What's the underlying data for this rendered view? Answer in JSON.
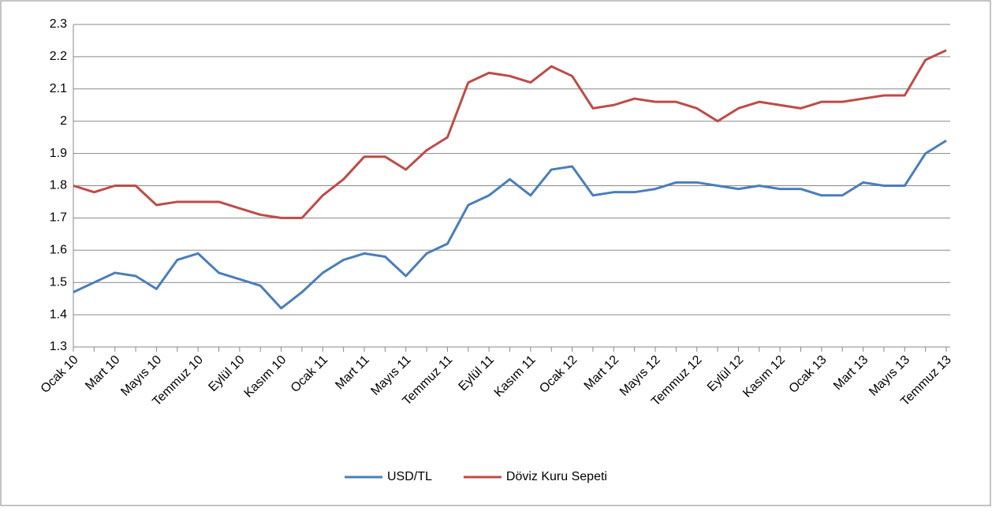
{
  "chart_data": {
    "type": "line",
    "categories": [
      "Ocak 10",
      null,
      "Mart 10",
      null,
      "Mayıs 10",
      null,
      "Temmuz 10",
      null,
      "Eylül 10",
      null,
      "Kasım 10",
      null,
      "Ocak 11",
      null,
      "Mart 11",
      null,
      "Mayıs 11",
      null,
      "Temmuz 11",
      null,
      "Eylül 11",
      null,
      "Kasım 11",
      null,
      "Ocak 12",
      null,
      "Mart 12",
      null,
      "Mayıs 12",
      null,
      "Temmuz 12",
      null,
      "Eylül 12",
      null,
      "Kasım 12",
      null,
      "Ocak 13",
      null,
      "Mart 13",
      null,
      "Mayıs 13",
      null,
      "Temmuz 13"
    ],
    "series": [
      {
        "name": "USD/TL",
        "color": "#4a7ebb",
        "values": [
          1.47,
          1.5,
          1.53,
          1.52,
          1.48,
          1.57,
          1.59,
          1.53,
          1.51,
          1.49,
          1.42,
          1.47,
          1.53,
          1.57,
          1.59,
          1.58,
          1.52,
          1.59,
          1.62,
          1.74,
          1.77,
          1.82,
          1.77,
          1.85,
          1.86,
          1.77,
          1.78,
          1.78,
          1.79,
          1.81,
          1.81,
          1.8,
          1.79,
          1.8,
          1.79,
          1.79,
          1.77,
          1.77,
          1.81,
          1.8,
          1.8,
          1.9,
          1.94
        ]
      },
      {
        "name": "Döviz Kuru Sepeti",
        "color": "#be4b48",
        "values": [
          1.8,
          1.78,
          1.8,
          1.8,
          1.74,
          1.75,
          1.75,
          1.75,
          1.73,
          1.71,
          1.7,
          1.7,
          1.77,
          1.82,
          1.89,
          1.89,
          1.85,
          1.91,
          1.95,
          2.12,
          2.15,
          2.14,
          2.12,
          2.17,
          2.14,
          2.04,
          2.05,
          2.07,
          2.06,
          2.06,
          2.04,
          2.0,
          2.04,
          2.06,
          2.05,
          2.04,
          2.06,
          2.06,
          2.07,
          2.08,
          2.08,
          2.19,
          2.22
        ]
      }
    ],
    "ylim": [
      1.3,
      2.3
    ],
    "yticks": [
      1.3,
      1.4,
      1.5,
      1.6,
      1.7,
      1.8,
      1.9,
      2,
      2.1,
      2.2,
      2.3
    ],
    "grid": true,
    "legend": "bottom"
  }
}
